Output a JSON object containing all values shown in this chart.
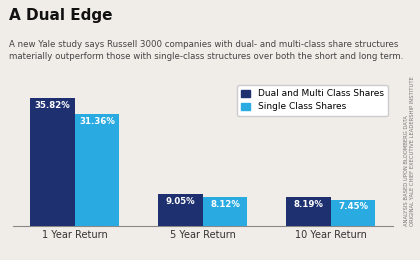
{
  "title": "A Dual Edge",
  "subtitle": "A new Yale study says Russell 3000 companies with dual- and multi-class share structures\nmaterially outperform those with single-class structures over both the short and long term.",
  "categories": [
    "1 Year Return",
    "5 Year Return",
    "10 Year Return"
  ],
  "dual_multi": [
    35.82,
    9.05,
    8.19
  ],
  "single": [
    31.36,
    8.12,
    7.45
  ],
  "dual_multi_labels": [
    "35.82%",
    "9.05%",
    "8.19%"
  ],
  "single_labels": [
    "31.36%",
    "8.12%",
    "7.45%"
  ],
  "color_dual": "#1e3070",
  "color_single": "#29abe2",
  "bg_color": "#f0ede8",
  "legend_label_dual": "Dual and Multi Class Shares",
  "legend_label_single": "Single Class Shares",
  "side_text": "ORIGINAL YALE CHIEF EXECUTIVE LEADERSHIP INSTITUTE\nANALYSIS BASED UPON BLOOMBERG DATA",
  "ylim": [
    0,
    40
  ],
  "bar_width": 0.35,
  "title_fontsize": 11,
  "subtitle_fontsize": 6.2,
  "label_fontsize": 6.2,
  "tick_fontsize": 7,
  "legend_fontsize": 6.5
}
